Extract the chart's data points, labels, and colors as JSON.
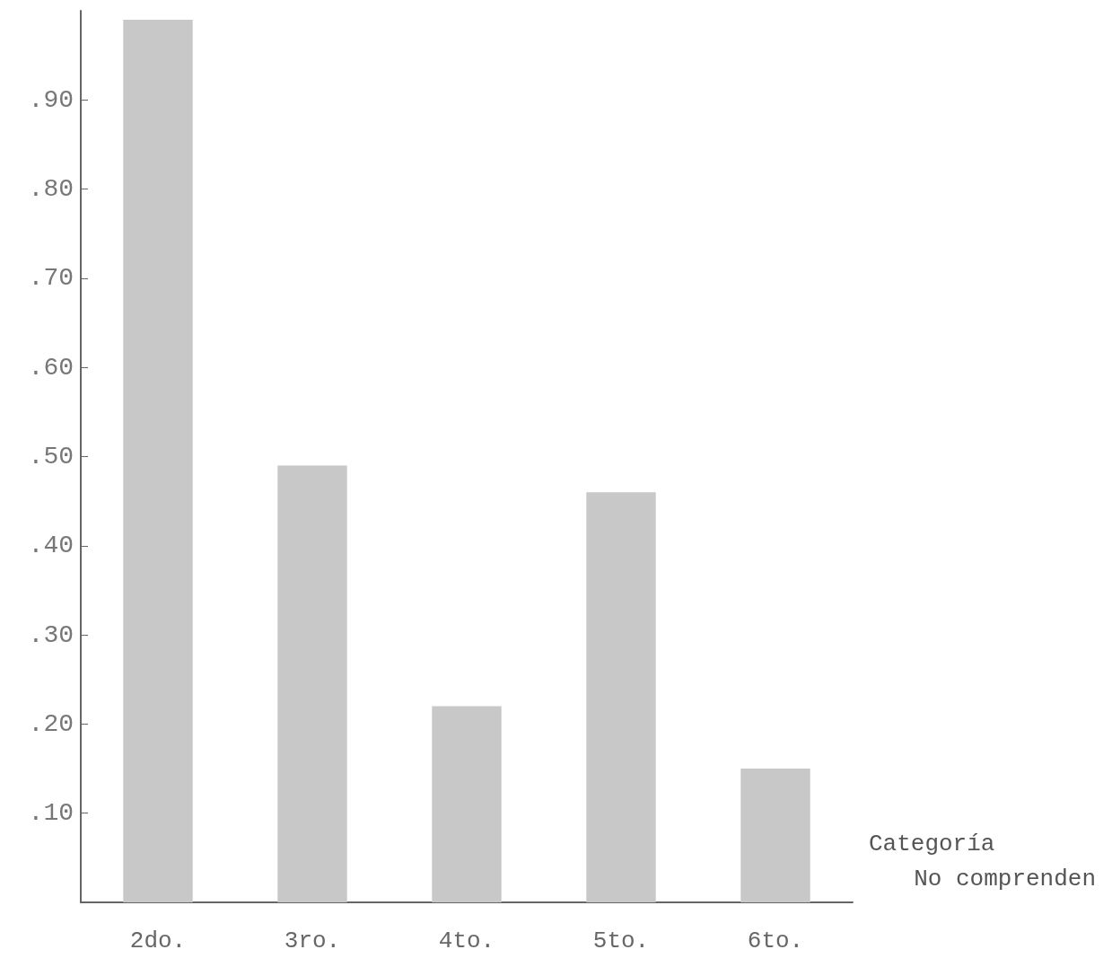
{
  "chart_data": {
    "type": "bar",
    "xlabel": "Categoría",
    "annotations": [
      "No comprenden"
    ],
    "categories": [
      "2do.",
      "3ro.",
      "4to.",
      "5to.",
      "6to."
    ],
    "values": [
      0.99,
      0.49,
      0.22,
      0.46,
      0.15
    ],
    "color": "#c8c8c8",
    "ylim": [
      0,
      1.0
    ],
    "yticks": [
      {
        "value": 0.1,
        "label": ".10"
      },
      {
        "value": 0.2,
        "label": ".20"
      },
      {
        "value": 0.3,
        "label": ".30"
      },
      {
        "value": 0.4,
        "label": ".40"
      },
      {
        "value": 0.5,
        "label": ".50"
      },
      {
        "value": 0.6,
        "label": ".60"
      },
      {
        "value": 0.7,
        "label": ".70"
      },
      {
        "value": 0.8,
        "label": ".80"
      },
      {
        "value": 0.9,
        "label": ".90"
      }
    ],
    "grid": false
  }
}
